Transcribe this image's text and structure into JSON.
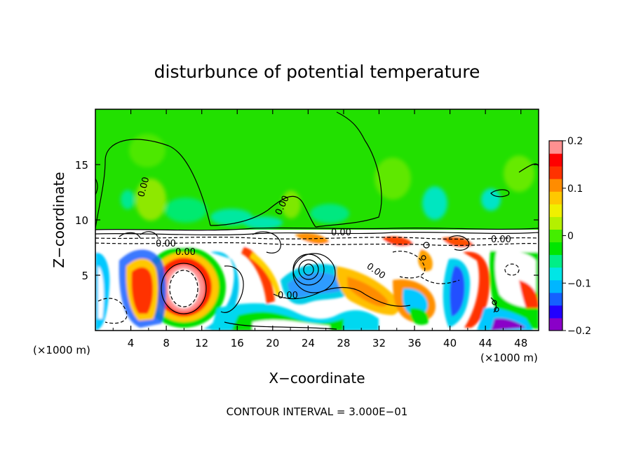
{
  "chart_data": {
    "type": "heatmap",
    "title": "disturbunce of potential temperature",
    "xlabel": "X−coordinate",
    "ylabel": "Z−coordinate",
    "x_unit_left": "(×1000 m)",
    "x_unit_right": "(×1000 m)",
    "footer": "CONTOUR INTERVAL = 3.000E−01",
    "xlim": [
      0,
      50
    ],
    "ylim": [
      0,
      20
    ],
    "x_ticks": [
      "4",
      "8",
      "12",
      "16",
      "20",
      "24",
      "28",
      "32",
      "36",
      "40",
      "44",
      "48"
    ],
    "y_ticks": [
      "5",
      "10",
      "15"
    ],
    "colorbar": {
      "range": [
        -0.2,
        0.2
      ],
      "tick_labels": [
        "0.2",
        "0.1",
        "0",
        "−0.1",
        "−0.2"
      ],
      "colors": [
        "#8a00c8",
        "#2200ff",
        "#1560ff",
        "#00b6ff",
        "#00e6e6",
        "#00ee88",
        "#00e600",
        "#44ee00",
        "#b4f000",
        "#f0f000",
        "#ffc800",
        "#ff8c00",
        "#ff3200",
        "#ff0000",
        "#ff9090"
      ]
    },
    "contour_labels": [
      "0.00",
      "0.00",
      "0.00",
      "0.00",
      "0.00",
      "0.00",
      "0.00",
      "0.00"
    ],
    "tropopause_height": 9.2
  }
}
